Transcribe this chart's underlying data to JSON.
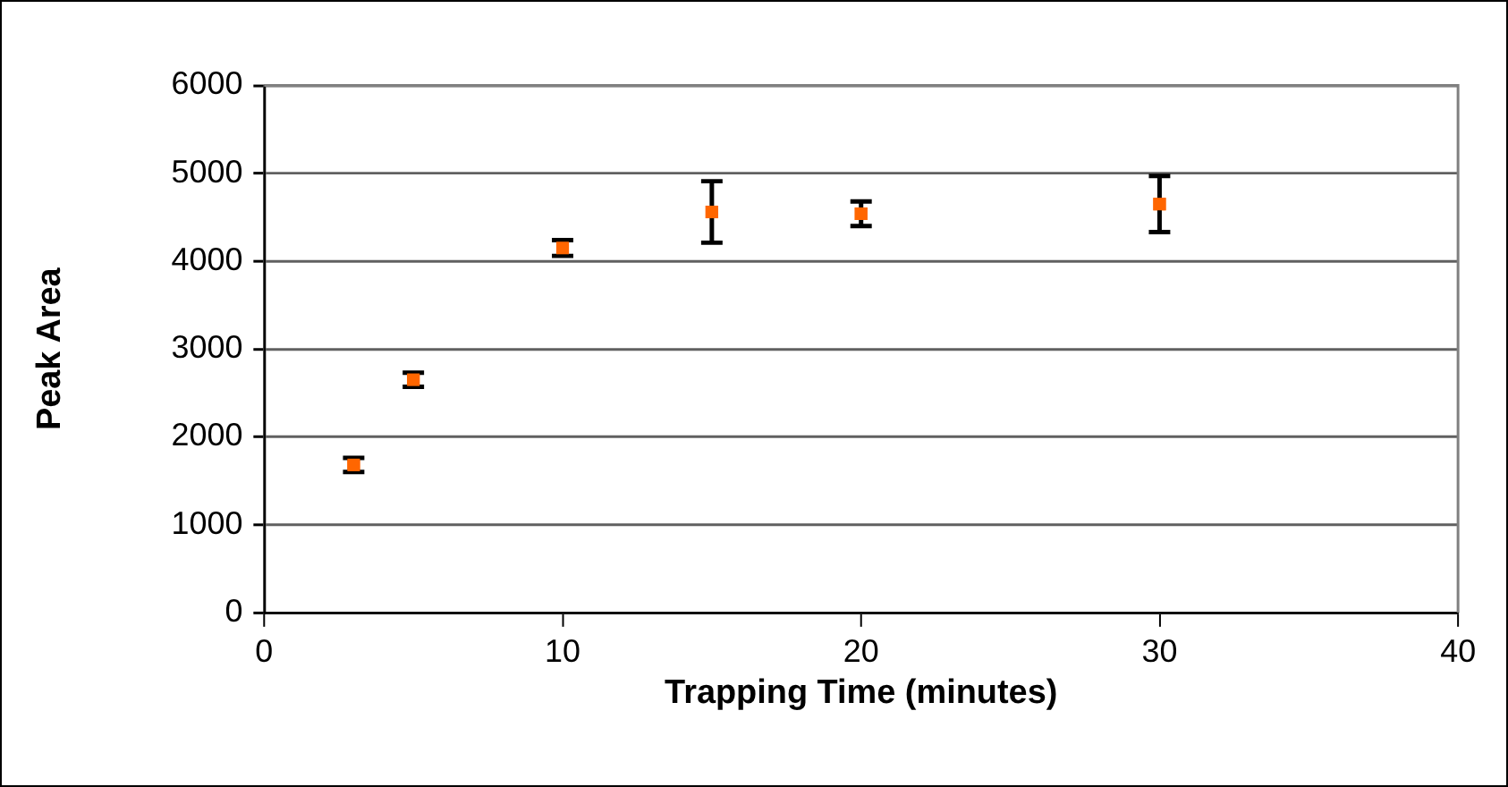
{
  "chart_data": {
    "type": "scatter",
    "xlabel": "Trapping Time (minutes)",
    "ylabel": "Peak Area",
    "x": [
      3,
      5,
      10,
      15,
      20,
      30
    ],
    "values": [
      1680,
      2650,
      4150,
      4560,
      4540,
      4650
    ],
    "errors": [
      80,
      80,
      90,
      350,
      140,
      320
    ],
    "color": "#ff6600",
    "marker": "square",
    "xlim": [
      0,
      40
    ],
    "xticks": [
      0,
      10,
      20,
      30,
      40
    ],
    "ylim": [
      0,
      6000
    ],
    "yticks": [
      0,
      1000,
      2000,
      3000,
      4000,
      5000,
      6000
    ],
    "grid": "y",
    "legend": false
  }
}
